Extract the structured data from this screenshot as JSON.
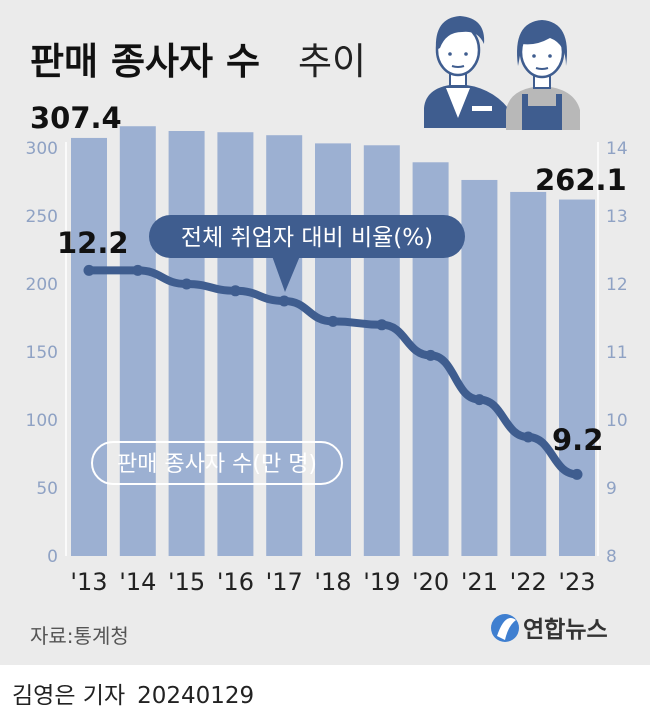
{
  "title": {
    "main": "판매 종사자 수",
    "sub": "추이"
  },
  "source": "자료:통계청",
  "logo_text": "연합뉴스",
  "byline": {
    "reporter": "김영은 기자",
    "date": "20240129"
  },
  "colors": {
    "bar": "#9cb0d2",
    "line": "#3f5d8f",
    "bubble": "#3f5d8f",
    "text": "#222222",
    "axis": "#8fa2c4"
  },
  "chart_data": {
    "type": "bar+line",
    "categories": [
      "'13",
      "'14",
      "'15",
      "'16",
      "'17",
      "'18",
      "'19",
      "'20",
      "'21",
      "'22",
      "'23"
    ],
    "series": [
      {
        "name": "판매 종사자 수(만 명)",
        "type": "bar",
        "axis": "left",
        "values": [
          307.4,
          316.0,
          312.5,
          311.6,
          309.4,
          303.4,
          302.0,
          289.5,
          276.5,
          267.7,
          262.1
        ]
      },
      {
        "name": "전체 취업자 대비 비율(%)",
        "type": "line",
        "axis": "right",
        "values": [
          12.2,
          12.2,
          12.0,
          11.9,
          11.75,
          11.45,
          11.4,
          10.95,
          10.3,
          9.75,
          9.2
        ]
      }
    ],
    "left_axis": {
      "min": 0,
      "max": 300,
      "ticks": [
        0,
        50,
        100,
        150,
        200,
        250,
        300
      ]
    },
    "right_axis": {
      "min": 8,
      "max": 14,
      "ticks": [
        8,
        9,
        10,
        11,
        12,
        13,
        14
      ]
    },
    "data_labels": {
      "bar_first": "307.4",
      "bar_last": "262.1",
      "line_first": "12.2",
      "line_last": "9.2"
    }
  }
}
